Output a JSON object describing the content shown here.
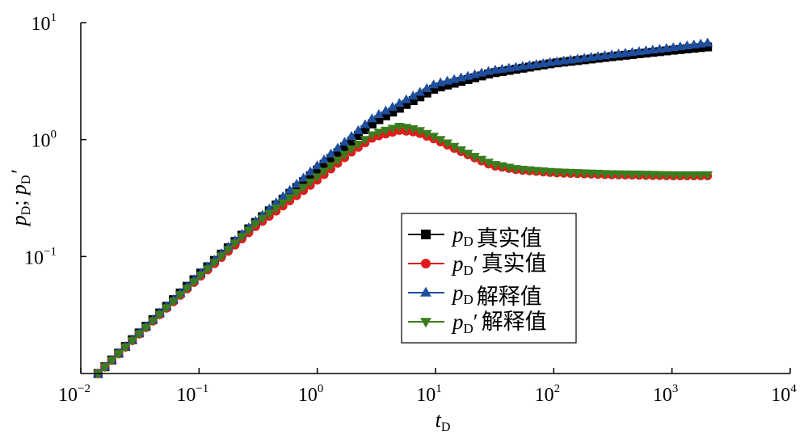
{
  "chart_data": {
    "type": "scatter",
    "xscale": "log",
    "yscale": "log",
    "xlim": [
      0.01,
      10000
    ],
    "ylim": [
      0.01,
      10
    ],
    "x_ticks": [
      {
        "base": "10",
        "exp": "−2"
      },
      {
        "base": "10",
        "exp": "−1"
      },
      {
        "base": "10",
        "exp": "0"
      },
      {
        "base": "10",
        "exp": "1"
      },
      {
        "base": "10",
        "exp": "2"
      },
      {
        "base": "10",
        "exp": "3"
      },
      {
        "base": "10",
        "exp": "4"
      }
    ],
    "y_ticks": [
      {
        "base": "10",
        "exp": "−1"
      },
      {
        "base": "10",
        "exp": "0"
      },
      {
        "base": "10",
        "exp": "1"
      }
    ],
    "xlabel": {
      "main": "t",
      "sub": "D"
    },
    "ylabel": {
      "p": "p",
      "sub": "D",
      "sep": "; ",
      "sub2": "D",
      "prime": "′"
    },
    "grid": false,
    "legend_position": "center-right",
    "t_range": [
      0.014,
      2000
    ],
    "series": [
      {
        "name": "真实值",
        "legend": {
          "main": "p",
          "sub": "D",
          "prime": "",
          "desc": "真实值"
        },
        "color": "#000000",
        "marker": "square",
        "points": [
          [
            0.014,
            0.01
          ],
          [
            0.03,
            0.0214
          ],
          [
            0.1,
            0.0699
          ],
          [
            0.3,
            0.195
          ],
          [
            1,
            0.55
          ],
          [
            3,
            1.4
          ],
          [
            10,
            2.75
          ],
          [
            30,
            3.7
          ],
          [
            100,
            4.5
          ],
          [
            300,
            5.1
          ],
          [
            1000,
            5.8
          ],
          [
            2000,
            6.2
          ]
        ]
      },
      {
        "name": "真实值",
        "legend": {
          "main": "p",
          "sub": "D",
          "prime": "′",
          "desc": "真实值"
        },
        "color": "#e11b1b",
        "marker": "circle",
        "points": [
          [
            0.014,
            0.01
          ],
          [
            0.03,
            0.021
          ],
          [
            0.1,
            0.066
          ],
          [
            0.3,
            0.18
          ],
          [
            1,
            0.45
          ],
          [
            2,
            0.8
          ],
          [
            3,
            1.05
          ],
          [
            5,
            1.2
          ],
          [
            7,
            1.15
          ],
          [
            10,
            1.0
          ],
          [
            20,
            0.72
          ],
          [
            30,
            0.6
          ],
          [
            50,
            0.55
          ],
          [
            100,
            0.52
          ],
          [
            300,
            0.5
          ],
          [
            1000,
            0.49
          ],
          [
            2000,
            0.49
          ]
        ]
      },
      {
        "name": "解释值",
        "legend": {
          "main": "p",
          "sub": "D",
          "prime": "",
          "desc": "解释值"
        },
        "color": "#1f4e9e",
        "marker": "triangle-up",
        "points": [
          [
            0.014,
            0.01
          ],
          [
            0.03,
            0.0214
          ],
          [
            0.1,
            0.07
          ],
          [
            0.3,
            0.2
          ],
          [
            1,
            0.6
          ],
          [
            3,
            1.55
          ],
          [
            10,
            3.0
          ],
          [
            30,
            3.9
          ],
          [
            100,
            4.6
          ],
          [
            300,
            5.3
          ],
          [
            1000,
            6.1
          ],
          [
            2000,
            6.7
          ]
        ]
      },
      {
        "name": "解释值",
        "legend": {
          "main": "p",
          "sub": "D",
          "prime": "′",
          "desc": "解释值"
        },
        "color": "#3a7d1e",
        "marker": "triangle-down",
        "points": [
          [
            0.014,
            0.01
          ],
          [
            0.03,
            0.021
          ],
          [
            0.1,
            0.067
          ],
          [
            0.3,
            0.19
          ],
          [
            1,
            0.48
          ],
          [
            2,
            0.85
          ],
          [
            3,
            1.12
          ],
          [
            5,
            1.3
          ],
          [
            7,
            1.22
          ],
          [
            10,
            1.05
          ],
          [
            20,
            0.74
          ],
          [
            30,
            0.62
          ],
          [
            50,
            0.56
          ],
          [
            100,
            0.53
          ],
          [
            300,
            0.51
          ],
          [
            1000,
            0.5
          ],
          [
            2000,
            0.5
          ]
        ]
      }
    ]
  }
}
